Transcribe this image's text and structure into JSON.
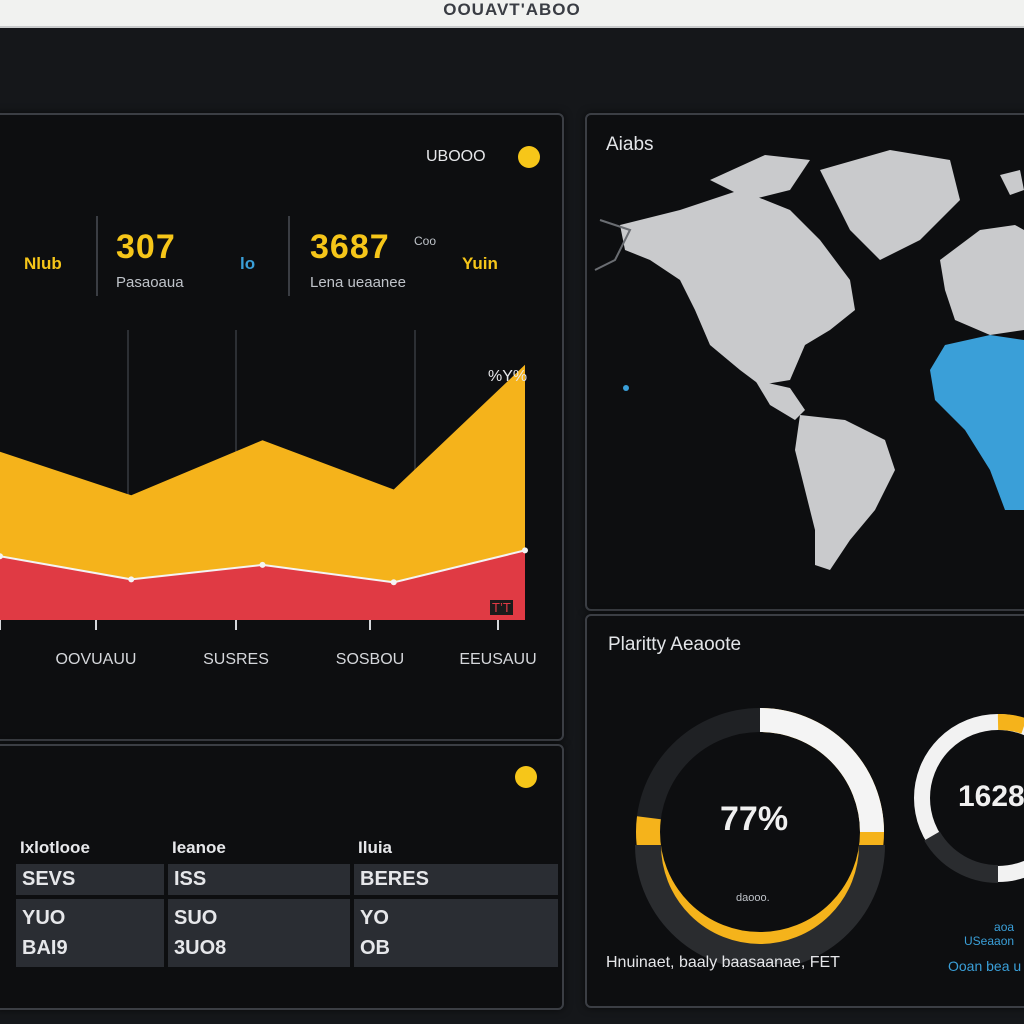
{
  "app": {
    "title": "OOUAVT'ABOO"
  },
  "main_panel": {
    "header_label": "UBOOO",
    "kpis": [
      {
        "label": "Nlub",
        "value": "307",
        "sub": "Pasaoaua"
      },
      {
        "label": "lo",
        "value": "3687",
        "sub": "Lena ueaanee",
        "unit": "Coo"
      },
      {
        "label": "Yuin"
      }
    ],
    "chart_peak_label": "%Y%",
    "chart_end_label": "T’T"
  },
  "chart_data": {
    "type": "area",
    "categories": [
      "",
      "OOVUAUU",
      "SUSRES",
      "SOSBOU",
      "EEUSAUU"
    ],
    "series": [
      {
        "color": "#f5b31b",
        "values": [
          58,
          43,
          62,
          45,
          88
        ]
      },
      {
        "color": "#e03a44",
        "values": [
          22,
          14,
          19,
          13,
          24
        ]
      }
    ],
    "ylim": [
      0,
      100
    ],
    "grid": true
  },
  "table_panel": {
    "headers": [
      "Ixlotlooe",
      "Ieanoe",
      "Iluia"
    ],
    "rows": [
      [
        "SEVS",
        "ISS",
        "BERES"
      ],
      [
        "YUO\nBAI9",
        "SUO\n3UO8",
        "YO\nOB"
      ]
    ]
  },
  "map_panel": {
    "title": "Aiabs"
  },
  "donut_panel": {
    "title": "Plaritty Aeaoote",
    "donut1": {
      "value_label": "77%",
      "percent": 77,
      "sub": "daooo.",
      "caption": "Hnuinaet, baaly baasaanae, FET"
    },
    "donut2": {
      "value_label": "1628",
      "caption_top": "aoa\nUSeaaon",
      "caption_bottom": "Ooan bea u"
    }
  },
  "colors": {
    "accent": "#f6c619",
    "area_yellow": "#f5b31b",
    "area_red": "#e03a44",
    "map_land": "#c9cacc",
    "map_highlight": "#3a9fd8"
  }
}
